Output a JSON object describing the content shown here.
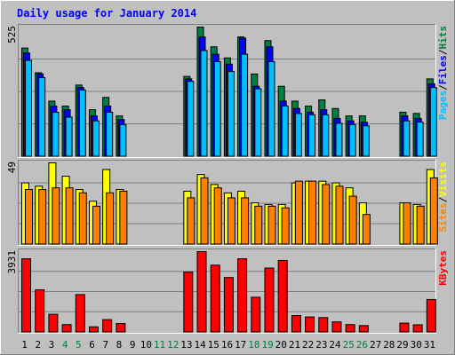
{
  "chart_data": {
    "type": "bar",
    "title": "Daily usage for January 2014",
    "days": [
      "1",
      "2",
      "3",
      "4",
      "5",
      "6",
      "7",
      "8",
      "9",
      "10",
      "11",
      "12",
      "13",
      "14",
      "15",
      "16",
      "17",
      "18",
      "19",
      "20",
      "21",
      "22",
      "23",
      "24",
      "25",
      "26",
      "27",
      "28",
      "29",
      "30",
      "31"
    ],
    "weekend_days": [
      "4",
      "5",
      "11",
      "12",
      "18",
      "19",
      "25",
      "26"
    ],
    "panels": [
      {
        "id": "top",
        "max_label": "525",
        "ymax": 525,
        "side_labels": [
          "Pages",
          "/",
          "Files",
          "/",
          "Hits"
        ],
        "series": [
          {
            "name": "Hits",
            "color": "#008040",
            "values": [
              440,
              340,
              225,
              205,
              290,
              190,
              240,
              165,
              0,
              0,
              0,
              0,
              325,
              525,
              445,
              400,
              485,
              335,
              470,
              285,
              225,
              205,
              230,
              195,
              165,
              165,
              0,
              0,
              180,
              175,
              315
            ]
          },
          {
            "name": "Files",
            "color": "#0000ff",
            "values": [
              420,
              335,
              205,
              190,
              280,
              165,
              205,
              150,
              0,
              0,
              0,
              0,
              315,
              485,
              415,
              375,
              480,
              285,
              445,
              225,
              195,
              180,
              190,
              155,
              145,
              140,
              0,
              0,
              165,
              155,
              295
            ]
          },
          {
            "name": "Pages",
            "color": "#00bfff",
            "values": [
              390,
              320,
              180,
              160,
              270,
              145,
              180,
              130,
              0,
              0,
              0,
              0,
              305,
              430,
              385,
              345,
              415,
              275,
              385,
              205,
              175,
              170,
              170,
              135,
              130,
              125,
              0,
              0,
              145,
              140,
              280
            ]
          }
        ]
      },
      {
        "id": "middle",
        "max_label": "49",
        "ymax": 49,
        "side_labels": [
          "Sites",
          "/",
          "Visits"
        ],
        "series": [
          {
            "name": "Visits",
            "color": "#ffff00",
            "values": [
              37,
              35,
              49,
              41,
              33,
              26,
              45,
              33,
              0,
              0,
              0,
              0,
              32,
              42,
              36,
              31,
              32,
              25,
              24,
              24,
              37,
              38,
              38,
              37,
              34,
              25,
              0,
              0,
              25,
              24,
              45
            ]
          },
          {
            "name": "Sites",
            "color": "#ff8000",
            "values": [
              33,
              33,
              34,
              34,
              31,
              23,
              31,
              32,
              0,
              0,
              0,
              0,
              28,
              40,
              34,
              28,
              28,
              23,
              23,
              22,
              38,
              38,
              36,
              35,
              29,
              18,
              0,
              0,
              25,
              23,
              40
            ]
          }
        ]
      },
      {
        "id": "bottom",
        "max_label": "3931",
        "ymax": 3931,
        "side_labels": [
          "KBytes"
        ],
        "series": [
          {
            "name": "KBytes",
            "color": "#ff0000",
            "values": [
              3580,
              2070,
              880,
              380,
              1840,
              270,
              620,
              430,
              0,
              0,
              0,
              0,
              2930,
              3931,
              3270,
              2670,
              3580,
              1710,
              3130,
              3500,
              820,
              750,
              720,
              510,
              380,
              330,
              0,
              0,
              450,
              370,
              1600
            ]
          }
        ]
      }
    ]
  }
}
